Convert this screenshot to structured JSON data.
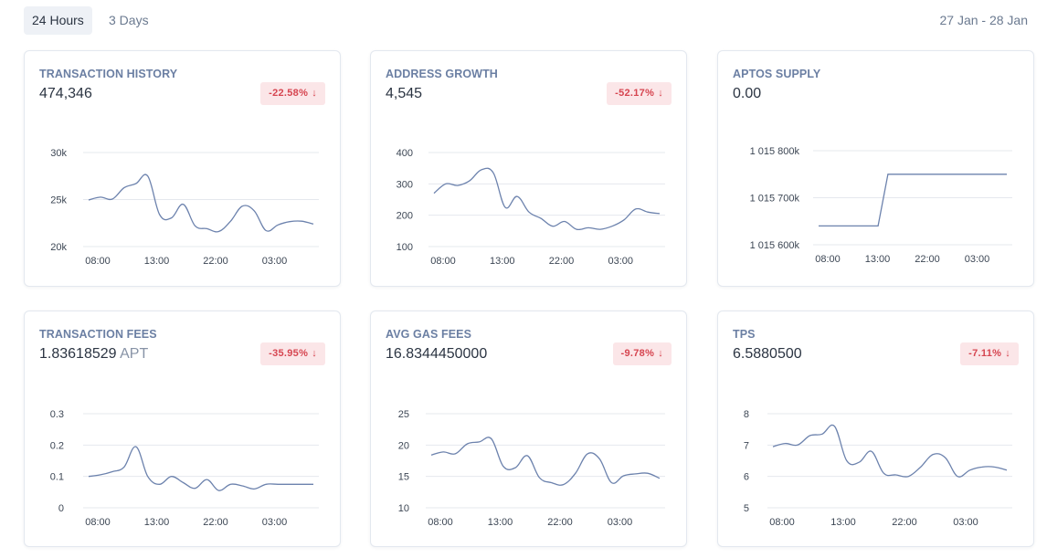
{
  "header": {
    "tabs": [
      {
        "label": "24 Hours",
        "active": true
      },
      {
        "label": "3 Days",
        "active": false
      }
    ],
    "date_range": "27 Jan - 28 Jan"
  },
  "colors": {
    "line": "#6c82ad",
    "badge_bg": "#fbe6e8",
    "badge_text": "#d64550",
    "title": "#6b7fa3"
  },
  "cards": [
    {
      "title": "TRANSACTION HISTORY",
      "value": "474,346",
      "unit": "",
      "change": "-22.58%",
      "change_icon": "arrow-down-icon",
      "chart_data": {
        "type": "line",
        "title": "TRANSACTION HISTORY",
        "x_ticks": [
          "08:00",
          "13:00",
          "22:00",
          "03:00"
        ],
        "y_ticks": [
          "30k",
          "25k",
          "20k"
        ],
        "ylim": [
          20000,
          30000
        ],
        "series": [
          {
            "name": "transactions",
            "values": [
              24950,
              25250,
              25050,
              26250,
              26700,
              27500,
              23400,
              23050,
              24500,
              22200,
              21900,
              21600,
              22700,
              24300,
              23800,
              21700,
              22300,
              22650,
              22700,
              22400
            ]
          }
        ]
      }
    },
    {
      "title": "ADDRESS GROWTH",
      "value": "4,545",
      "unit": "",
      "change": "-52.17%",
      "change_icon": "arrow-down-icon",
      "chart_data": {
        "type": "line",
        "title": "ADDRESS GROWTH",
        "x_ticks": [
          "08:00",
          "13:00",
          "22:00",
          "03:00"
        ],
        "y_ticks": [
          "400",
          "300",
          "200",
          "100"
        ],
        "ylim": [
          100,
          400
        ],
        "series": [
          {
            "name": "addresses",
            "values": [
              270,
              300,
              295,
              310,
              345,
              335,
              225,
              260,
              210,
              190,
              165,
              180,
              155,
              160,
              155,
              165,
              185,
              220,
              210,
              205
            ]
          }
        ]
      }
    },
    {
      "title": "APTOS SUPPLY",
      "value": "0.00",
      "unit": "",
      "change": "",
      "change_icon": "",
      "chart_data": {
        "type": "line",
        "title": "APTOS SUPPLY",
        "x_ticks": [
          "08:00",
          "13:00",
          "22:00",
          "03:00"
        ],
        "y_ticks": [
          "1 015 800k",
          "1 015 700k",
          "1 015 600k"
        ],
        "ylim": [
          1015600,
          1015800
        ],
        "series": [
          {
            "name": "supply",
            "values": [
              1015640,
              1015640,
              1015640,
              1015640,
              1015640,
              1015640,
              1015640,
              1015750,
              1015750,
              1015750,
              1015750,
              1015750,
              1015750,
              1015750,
              1015750,
              1015750,
              1015750,
              1015750,
              1015750,
              1015750
            ]
          }
        ]
      }
    },
    {
      "title": "TRANSACTION FEES",
      "value": "1.83618529",
      "unit": "APT",
      "change": "-35.95%",
      "change_icon": "arrow-down-icon",
      "chart_data": {
        "type": "line",
        "title": "TRANSACTION FEES",
        "x_ticks": [
          "08:00",
          "13:00",
          "22:00",
          "03:00"
        ],
        "y_ticks": [
          "0.3",
          "0.2",
          "0.1",
          "0"
        ],
        "ylim": [
          0,
          0.3
        ],
        "series": [
          {
            "name": "fees",
            "values": [
              0.1,
              0.105,
              0.115,
              0.13,
              0.195,
              0.1,
              0.075,
              0.1,
              0.08,
              0.062,
              0.09,
              0.055,
              0.075,
              0.07,
              0.06,
              0.075,
              0.075,
              0.075,
              0.075,
              0.075
            ]
          }
        ]
      }
    },
    {
      "title": "AVG GAS FEES",
      "value": "16.8344450000",
      "unit": "",
      "change": "-9.78%",
      "change_icon": "arrow-down-icon",
      "chart_data": {
        "type": "line",
        "title": "AVG GAS FEES",
        "x_ticks": [
          "08:00",
          "13:00",
          "22:00",
          "03:00"
        ],
        "y_ticks": [
          "25",
          "20",
          "15",
          "10"
        ],
        "ylim": [
          10,
          25
        ],
        "series": [
          {
            "name": "gas",
            "values": [
              18.4,
              18.9,
              18.6,
              20.2,
              20.5,
              21.0,
              16.6,
              16.4,
              18.3,
              14.8,
              14.0,
              13.7,
              15.5,
              18.6,
              17.8,
              14.0,
              15.1,
              15.4,
              15.5,
              14.7
            ]
          }
        ]
      }
    },
    {
      "title": "TPS",
      "value": "6.5880500",
      "unit": "",
      "change": "-7.11%",
      "change_icon": "arrow-down-icon",
      "chart_data": {
        "type": "line",
        "title": "TPS",
        "x_ticks": [
          "08:00",
          "13:00",
          "22:00",
          "03:00"
        ],
        "y_ticks": [
          "8",
          "7",
          "6",
          "5"
        ],
        "ylim": [
          5,
          8
        ],
        "series": [
          {
            "name": "tps",
            "values": [
              6.95,
              7.05,
              7.0,
              7.3,
              7.35,
              7.6,
              6.5,
              6.45,
              6.8,
              6.1,
              6.05,
              6.0,
              6.3,
              6.7,
              6.6,
              6.0,
              6.2,
              6.3,
              6.3,
              6.2
            ]
          }
        ]
      }
    }
  ]
}
